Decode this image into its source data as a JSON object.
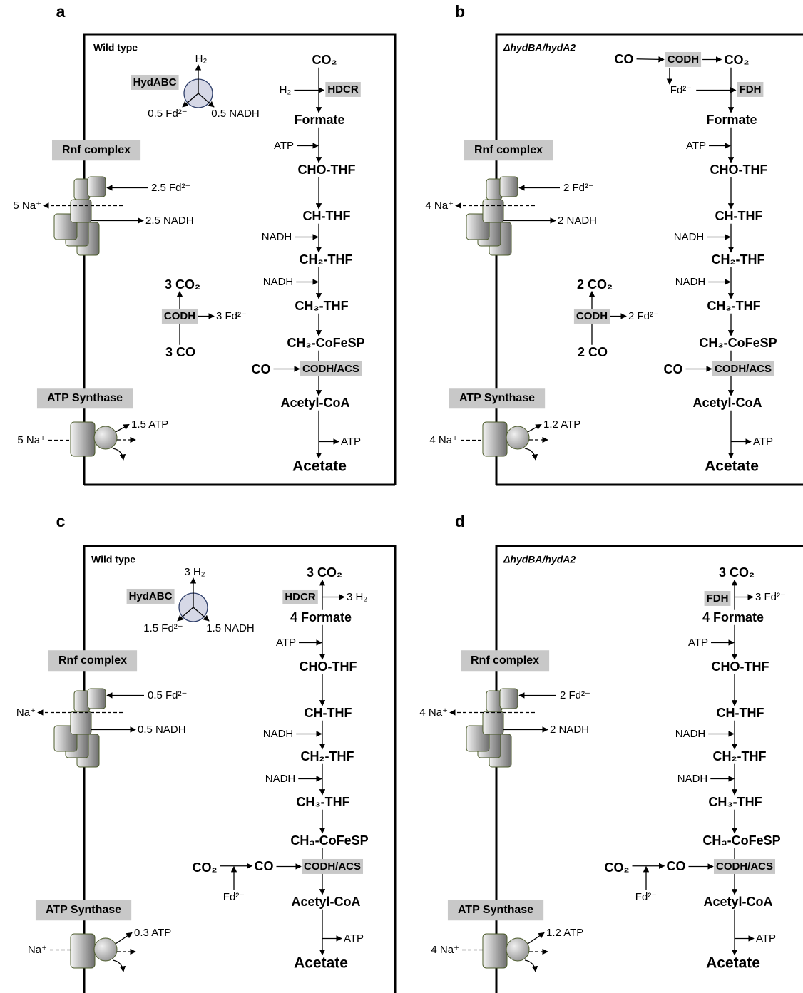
{
  "panels": [
    {
      "label": "a",
      "strain": "Wild type",
      "hydrogenase": {
        "name": "HydABC",
        "h2": "H₂",
        "fd": "0.5 Fd²⁻",
        "nadh": "0.5 NADH"
      },
      "rnf": {
        "name": "Rnf complex",
        "fd": "2.5 Fd²⁻",
        "na": "5 Na⁺",
        "nadh": "2.5 NADH"
      },
      "codh": {
        "name": "CODH",
        "co2": "3 CO₂",
        "fd": "3 Fd²⁻",
        "co": "3 CO"
      },
      "atp_synthase": {
        "name": "ATP Synthase",
        "na": "5 Na⁺",
        "atp": "1.5 ATP"
      },
      "pathway": {
        "co2": "CO₂",
        "h2": "H₂",
        "enzyme1": "HDCR",
        "formate": "Formate",
        "atp_in": "ATP",
        "cho": "CHO-THF",
        "ch": "CH-THF",
        "nadh1": "NADH",
        "ch2": "CH₂-THF",
        "nadh2": "NADH",
        "ch3": "CH₃-THF",
        "cofesp": "CH₃-CoFeSP",
        "co_in": "CO",
        "acs": "CODH/ACS",
        "acetylcoa": "Acetyl-CoA",
        "atp_out": "ATP",
        "acetate": "Acetate"
      }
    },
    {
      "label": "b",
      "strain": "ΔhydBA/hydA2",
      "rnf": {
        "name": "Rnf complex",
        "fd": "2 Fd²⁻",
        "na": "4 Na⁺",
        "nadh": "2 NADH"
      },
      "codh": {
        "name": "CODH",
        "co2": "2 CO₂",
        "fd": "2 Fd²⁻",
        "co": "2 CO"
      },
      "atp_synthase": {
        "name": "ATP Synthase",
        "na": "4 Na⁺",
        "atp": "1.2 ATP"
      },
      "pathway": {
        "co_start": "CO",
        "codh": "CODH",
        "co2": "CO₂",
        "fd_in": "Fd²⁻",
        "enzyme1": "FDH",
        "formate": "Formate",
        "atp_in": "ATP",
        "cho": "CHO-THF",
        "ch": "CH-THF",
        "nadh1": "NADH",
        "ch2": "CH₂-THF",
        "nadh2": "NADH",
        "ch3": "CH₃-THF",
        "cofesp": "CH₃-CoFeSP",
        "co_in": "CO",
        "acs": "CODH/ACS",
        "acetylcoa": "Acetyl-CoA",
        "atp_out": "ATP",
        "acetate": "Acetate"
      }
    },
    {
      "label": "c",
      "strain": "Wild type",
      "hydrogenase": {
        "name": "HydABC",
        "h2": "3 H₂",
        "fd": "1.5 Fd²⁻",
        "nadh": "1.5 NADH"
      },
      "rnf": {
        "name": "Rnf complex",
        "fd": "0.5 Fd²⁻",
        "na": "Na⁺",
        "nadh": "0.5 NADH"
      },
      "atp_synthase": {
        "name": "ATP Synthase",
        "na": "Na⁺",
        "atp": "0.3 ATP"
      },
      "pathway": {
        "co2": "3 CO₂",
        "enzyme1": "HDCR",
        "h2_out": "3 H₂",
        "formate": "4 Formate",
        "atp_in": "ATP",
        "cho": "CHO-THF",
        "ch": "CH-THF",
        "nadh1": "NADH",
        "ch2": "CH₂-THF",
        "nadh2": "NADH",
        "ch3": "CH₃-THF",
        "cofesp": "CH₃-CoFeSP",
        "co2_in": "CO₂",
        "fd_in": "Fd²⁻",
        "co_in": "CO",
        "acs": "CODH/ACS",
        "acetylcoa": "Acetyl-CoA",
        "atp_out": "ATP",
        "acetate": "Acetate"
      }
    },
    {
      "label": "d",
      "strain": "ΔhydBA/hydA2",
      "rnf": {
        "name": "Rnf complex",
        "fd": "2 Fd²⁻",
        "na": "4 Na⁺",
        "nadh": "2 NADH"
      },
      "atp_synthase": {
        "name": "ATP Synthase",
        "na": "4 Na⁺",
        "atp": "1.2 ATP"
      },
      "pathway": {
        "co2": "3 CO₂",
        "enzyme1": "FDH",
        "fd_out": "3 Fd²⁻",
        "formate": "4 Formate",
        "atp_in": "ATP",
        "cho": "CHO-THF",
        "ch": "CH-THF",
        "nadh1": "NADH",
        "ch2": "CH₂-THF",
        "nadh2": "NADH",
        "ch3": "CH₃-THF",
        "cofesp": "CH₃-CoFeSP",
        "co2_in": "CO₂",
        "fd_in": "Fd²⁻",
        "co_in": "CO",
        "acs": "CODH/ACS",
        "acetylcoa": "Acetyl-CoA",
        "atp_out": "ATP",
        "acetate": "Acetate"
      }
    }
  ]
}
